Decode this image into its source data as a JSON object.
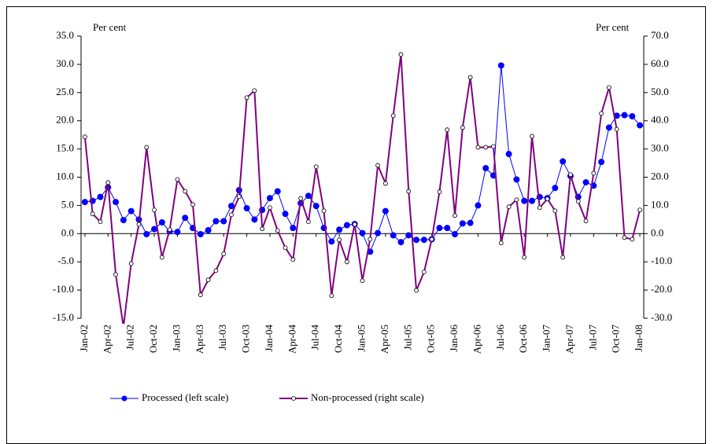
{
  "chart_data": {
    "type": "line",
    "y_label": "Per cent",
    "y2_label": "Per cent",
    "categories": [
      "Jan-02",
      null,
      null,
      "Apr-02",
      null,
      null,
      "Jul-02",
      null,
      null,
      "Oct-02",
      null,
      null,
      "Jan-03",
      null,
      null,
      "Apr-03",
      null,
      null,
      "Jul-03",
      null,
      null,
      "Oct-03",
      null,
      null,
      "Jan-04",
      null,
      null,
      "Apr-04",
      null,
      null,
      "Jul-04",
      null,
      null,
      "Oct-04",
      null,
      null,
      "Jan-05",
      null,
      null,
      "Apr-05",
      null,
      null,
      "Jul-05",
      null,
      null,
      "Oct-05",
      null,
      null,
      "Jan-06",
      null,
      null,
      "Apr-06",
      null,
      null,
      "Jul-06",
      null,
      null,
      "Oct-06",
      null,
      null,
      "Jan-07",
      null,
      null,
      "Apr-07",
      null,
      null,
      "Jul-07",
      null,
      null,
      "Oct-07",
      null,
      null,
      "Jan-08"
    ],
    "series": [
      {
        "name": "Processed (left scale)",
        "color": "#0000ff",
        "axis": "y",
        "values": [
          5.6,
          5.8,
          6.5,
          8.2,
          5.6,
          2.4,
          4.0,
          2.5,
          -0.1,
          0.8,
          2.0,
          0.4,
          0.3,
          2.8,
          1.0,
          -0.1,
          0.6,
          2.2,
          2.2,
          4.9,
          7.7,
          4.5,
          2.5,
          4.2,
          6.3,
          7.5,
          3.5,
          1.0,
          5.4,
          6.7,
          4.9,
          1.0,
          -1.4,
          0.7,
          1.5,
          1.7,
          0.1,
          -3.2,
          0.1,
          4.0,
          -0.3,
          -1.5,
          -0.3,
          -1.1,
          -1.1,
          -1.0,
          1.0,
          1.0,
          -0.1,
          1.8,
          1.9,
          5.0,
          11.6,
          10.3,
          29.8,
          14.1,
          9.6,
          5.8,
          5.8,
          6.5,
          6.3,
          8.1,
          12.8,
          10.2,
          6.5,
          9.1,
          8.5,
          12.7,
          18.8,
          20.9,
          21.0,
          20.8,
          19.2
        ]
      },
      {
        "name": "Non-processed (right scale)",
        "color": "#800080",
        "axis": "y2",
        "values": [
          34.3,
          7.0,
          4.2,
          18.1,
          -14.5,
          -33.0,
          -10.6,
          3.3,
          30.6,
          8.4,
          -8.4,
          1.4,
          19.2,
          15.0,
          10.3,
          -21.7,
          -16.4,
          -13.1,
          -7.2,
          6.7,
          13.1,
          48.2,
          50.7,
          1.7,
          9.2,
          1.1,
          -5.0,
          -9.2,
          12.5,
          4.2,
          23.7,
          8.1,
          -22.0,
          -2.2,
          -10.0,
          3.3,
          -16.7,
          -2.0,
          24.2,
          17.8,
          41.8,
          63.5,
          15.0,
          -20.1,
          -13.6,
          -2.0,
          14.8,
          36.8,
          6.4,
          37.6,
          55.4,
          30.6,
          30.6,
          30.9,
          -3.3,
          9.5,
          12.0,
          -8.4,
          34.5,
          9.2,
          12.3,
          8.1,
          -8.4,
          20.9,
          11.4,
          4.5,
          21.4,
          42.6,
          51.8,
          37.0,
          -1.4,
          -2.0,
          8.4
        ]
      }
    ],
    "ylim": [
      -15,
      35
    ],
    "yticks": [
      {
        "value": 35,
        "label": "35.0"
      },
      {
        "value": 30,
        "label": "30.0"
      },
      {
        "value": 25,
        "label": "25.0"
      },
      {
        "value": 20,
        "label": "20.0"
      },
      {
        "value": 15,
        "label": "15.0"
      },
      {
        "value": 10,
        "label": "10.0"
      },
      {
        "value": 5,
        "label": "5.0"
      },
      {
        "value": 0,
        "label": "0.0"
      },
      {
        "value": -5,
        "label": "-5.0"
      },
      {
        "value": -10,
        "label": "-10.0"
      },
      {
        "value": -15,
        "label": "-15.0"
      }
    ],
    "y2lim": [
      -30,
      70
    ],
    "y2ticks": [
      {
        "value": 70,
        "label": "70.0"
      },
      {
        "value": 60,
        "label": "60.0"
      },
      {
        "value": 50,
        "label": "50.0"
      },
      {
        "value": 40,
        "label": "40.0"
      },
      {
        "value": 30,
        "label": "30.0"
      },
      {
        "value": 20,
        "label": "20.0"
      },
      {
        "value": 10,
        "label": "10.0"
      },
      {
        "value": 0,
        "label": "0.0"
      },
      {
        "value": -10,
        "label": "-10.0"
      },
      {
        "value": -20,
        "label": "-20.0"
      },
      {
        "value": -30,
        "label": "-30.0"
      }
    ],
    "grid": false
  }
}
